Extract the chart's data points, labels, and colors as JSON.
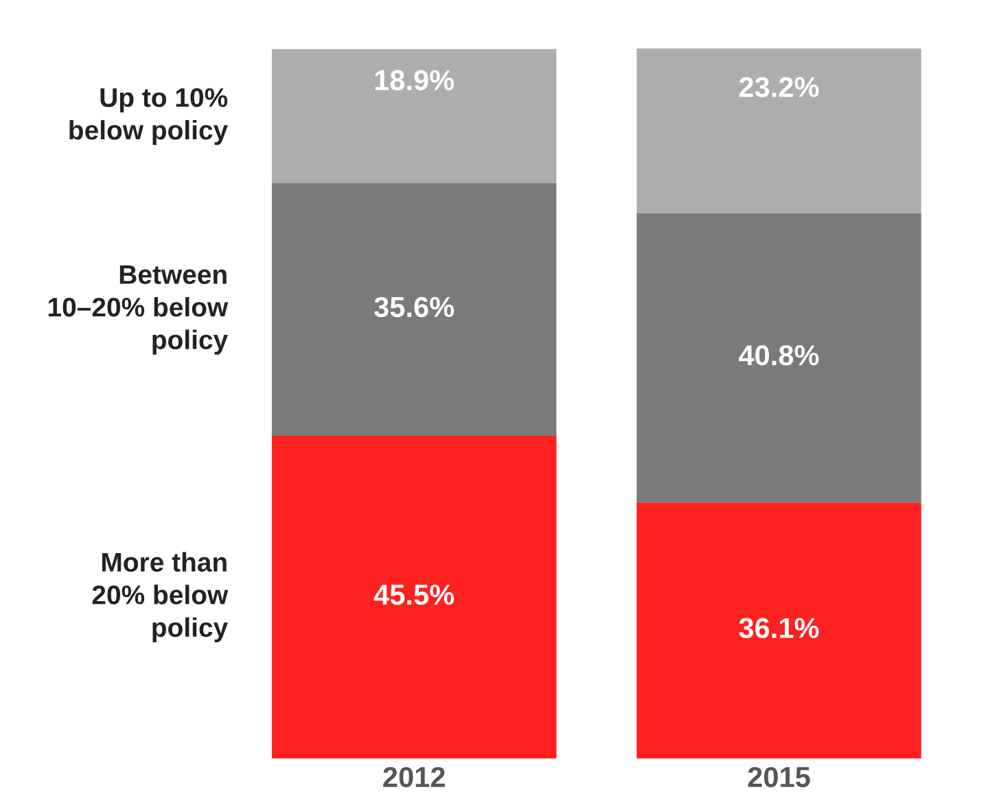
{
  "chart_data": {
    "type": "bar",
    "stacked": true,
    "categories": [
      "2012",
      "2015"
    ],
    "series": [
      {
        "name": "More than 20% below policy",
        "color": "#ff2020",
        "values": [
          45.5,
          36.1
        ],
        "value_labels": [
          "45.5%",
          "36.1%"
        ]
      },
      {
        "name": "Between 10–20% below policy",
        "color": "#7a7a7a",
        "values": [
          35.6,
          40.8
        ],
        "value_labels": [
          "35.6%",
          "40.8%"
        ]
      },
      {
        "name": "Up to 10% below policy",
        "color": "#adadad",
        "values": [
          18.9,
          23.2
        ],
        "value_labels": [
          "18.9%",
          "23.2%"
        ]
      }
    ],
    "legend": false
  }
}
